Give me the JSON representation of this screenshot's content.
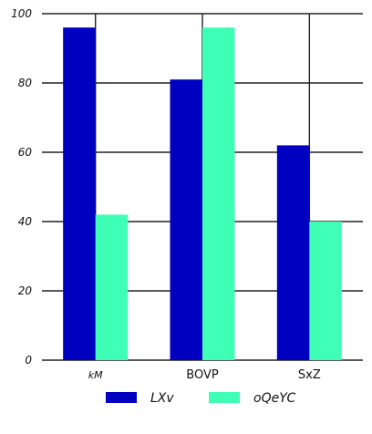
{
  "chart_data": {
    "type": "bar",
    "categories": [
      "kM",
      "BOVP",
      "SxZ"
    ],
    "series": [
      {
        "name": "LXv",
        "values": [
          96,
          81,
          62
        ],
        "color": "#0000c0"
      },
      {
        "name": "oQeYC",
        "values": [
          42,
          96,
          40
        ],
        "color": "#3fffb6"
      }
    ],
    "ylim": [
      0,
      100
    ],
    "yticks": [
      0,
      20,
      40,
      60,
      80,
      100
    ],
    "grid": true,
    "legend_position": "bottom-center",
    "xlabel": "",
    "ylabel": "",
    "title": ""
  }
}
